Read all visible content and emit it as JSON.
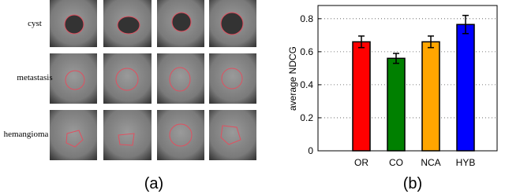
{
  "panel_a": {
    "row_labels": [
      "cyst",
      "metastasis",
      "hemangioma"
    ],
    "caption": "(a)"
  },
  "chart_data": {
    "type": "bar",
    "ylabel": "average NDCG",
    "caption": "(b)",
    "categories": [
      "OR",
      "CO",
      "NCA",
      "HYB"
    ],
    "values": [
      0.66,
      0.56,
      0.66,
      0.765
    ],
    "errors": [
      0.035,
      0.03,
      0.035,
      0.055
    ],
    "colors": [
      "#ff0000",
      "#008000",
      "#ffa500",
      "#0000ff"
    ],
    "ylim": [
      0,
      0.88
    ],
    "yticks": [
      0,
      0.2,
      0.4,
      0.6,
      0.8
    ],
    "grid": true
  }
}
